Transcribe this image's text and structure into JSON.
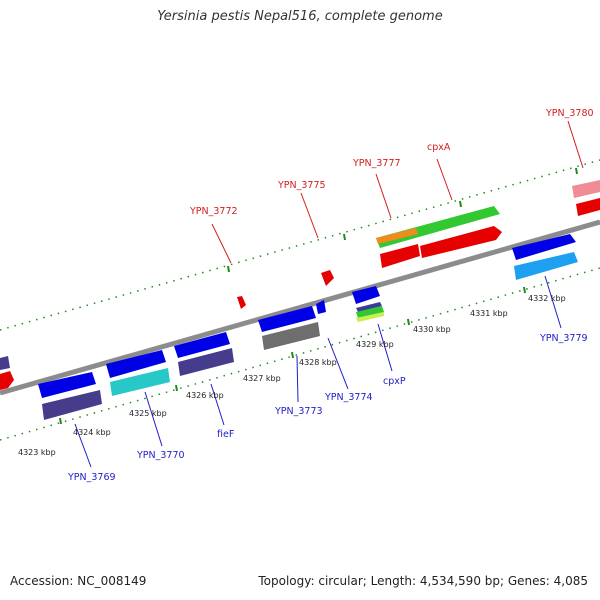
{
  "title": "Yersinia pestis Nepal516, complete genome",
  "footer": {
    "accession": "Accession: NC_008149",
    "summary": "Topology: circular; Length: 4,534,590 bp; Genes: 4,085"
  },
  "colors": {
    "backbone": "#8c8c8c",
    "ticks": "#1e8c1e",
    "top_label": "#d21e1e",
    "bottom_label": "#1e1ec8"
  },
  "kbp_labels": [
    "4323 kbp",
    "4324 kbp",
    "4325 kbp",
    "4326 kbp",
    "4327 kbp",
    "4328 kbp",
    "4329 kbp",
    "4330 kbp",
    "4331 kbp",
    "4332 kbp"
  ],
  "top_labels": [
    "YPN_3772",
    "YPN_3775",
    "YPN_3777",
    "cpxA",
    "YPN_3780"
  ],
  "bottom_labels": [
    "YPN_3769",
    "YPN_3770",
    "fieF",
    "YPN_3773",
    "YPN_3774",
    "cpxP",
    "YPN_3779"
  ]
}
